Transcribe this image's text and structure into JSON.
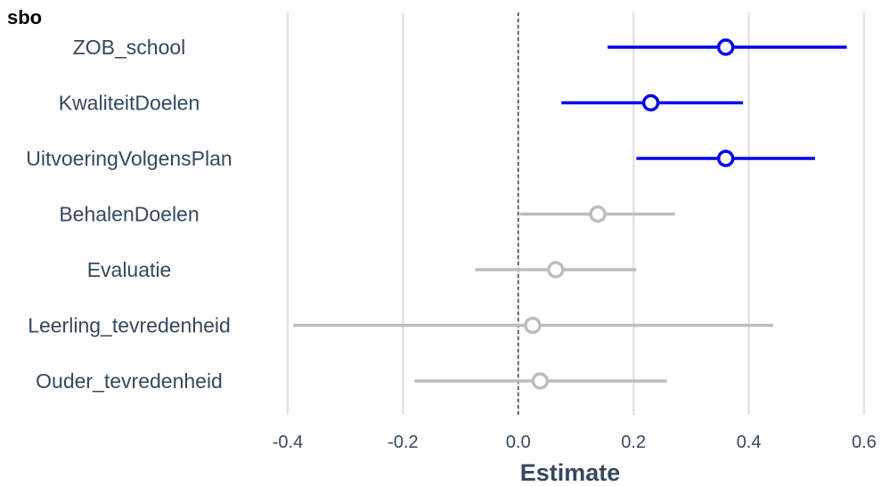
{
  "chart_data": {
    "type": "forest",
    "title": "sbo",
    "xlabel": "Estimate",
    "xlim": [
      -0.4,
      0.6
    ],
    "xticks": [
      "-0.4",
      "-0.2",
      "0.0",
      "0.2",
      "0.4",
      "0.6"
    ],
    "xtick_values": [
      -0.4,
      -0.2,
      0.0,
      0.2,
      0.4,
      0.6
    ],
    "reference_line": 0,
    "grid": "vertical",
    "colors": {
      "significant": "#0000ee",
      "nonsignificant": "#bdbdbd",
      "grid": "#e3e3e3",
      "reference": "#333333"
    },
    "rows": [
      {
        "label": "ZOB_school",
        "estimate": 0.36,
        "lower": 0.155,
        "upper": 0.57,
        "significant": true
      },
      {
        "label": "KwaliteitDoelen",
        "estimate": 0.23,
        "lower": 0.075,
        "upper": 0.39,
        "significant": true
      },
      {
        "label": "UitvoeringVolgensPlan",
        "estimate": 0.36,
        "lower": 0.205,
        "upper": 0.515,
        "significant": true
      },
      {
        "label": "BehalenDoelen",
        "estimate": 0.138,
        "lower": 0.003,
        "upper": 0.272,
        "significant": false
      },
      {
        "label": "Evaluatie",
        "estimate": 0.065,
        "lower": -0.075,
        "upper": 0.205,
        "significant": false
      },
      {
        "label": "Leerling_tevredenheid",
        "estimate": 0.025,
        "lower": -0.39,
        "upper": 0.442,
        "significant": false
      },
      {
        "label": "Ouder_tevredenheid",
        "estimate": 0.038,
        "lower": -0.18,
        "upper": 0.258,
        "significant": false
      }
    ]
  }
}
